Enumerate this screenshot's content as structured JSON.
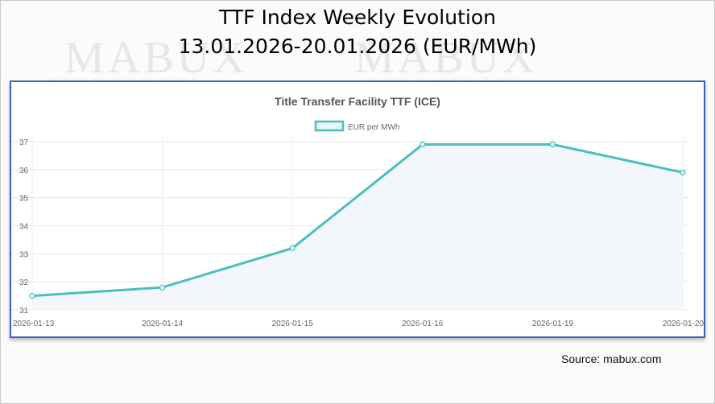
{
  "page": {
    "title_line1": "TTF Index Weekly Evolution",
    "title_line2": "13.01.2026-20.01.2026 (EUR/MWh)",
    "source": "Source: mabux.com",
    "watermark": "MABUX",
    "watermark_sub": "MARINE BUNKER EXCHANGE"
  },
  "chart_data": {
    "type": "area",
    "title": "Title Transfer Facility TTF (ICE)",
    "xlabel": "",
    "ylabel": "",
    "categories": [
      "2026-01-13",
      "2026-01-14",
      "2026-01-15",
      "2026-01-16",
      "2026-01-19",
      "2026-01-20"
    ],
    "series": [
      {
        "name": "EUR per MWh",
        "values": [
          31.5,
          31.8,
          33.2,
          36.9,
          36.9,
          35.9
        ]
      }
    ],
    "ylim": [
      31,
      37
    ],
    "yticks": [
      "31",
      "32",
      "33",
      "34",
      "35",
      "36",
      "37"
    ],
    "grid": true,
    "legend": "top-center",
    "colors": {
      "line": "#4bbfbf",
      "fill": "#f3f6fa",
      "frame": "#3b64b5"
    }
  }
}
